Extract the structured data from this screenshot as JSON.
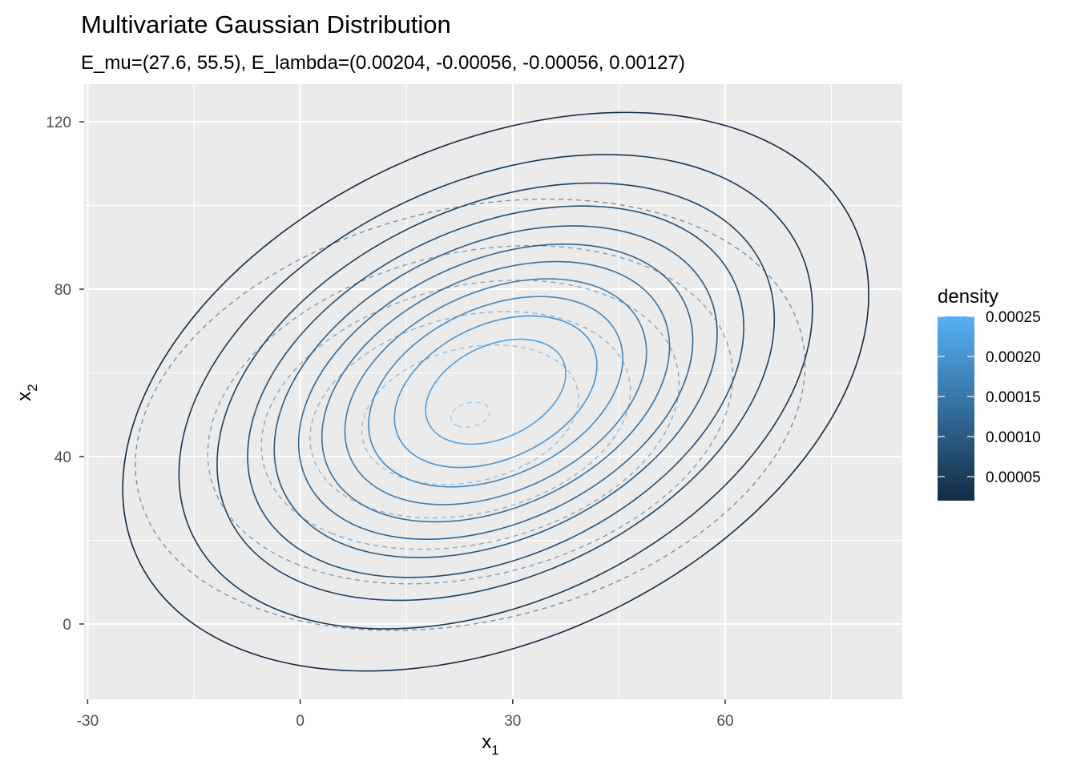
{
  "chart_data": {
    "type": "contour",
    "title": "Multivariate Gaussian Distribution",
    "subtitle": "E_mu=(27.6, 55.5), E_lambda=(0.00204, -0.00056, -0.00056, 0.00127)",
    "xlabel": "x",
    "xlabel_sub": "1",
    "ylabel": "x",
    "ylabel_sub": "2",
    "xlim": [
      -30.5,
      85
    ],
    "ylim": [
      -18,
      129
    ],
    "xticks": [
      -30,
      0,
      30,
      60
    ],
    "xtick_labels": [
      "-30",
      "0",
      "30",
      "60"
    ],
    "yticks": [
      0,
      40,
      80,
      120
    ],
    "ytick_labels": [
      "0",
      "40",
      "80",
      "120"
    ],
    "grid": true,
    "legend": {
      "title": "density",
      "position": "right",
      "range": [
        2e-05,
        0.00025
      ],
      "breaks": [
        5e-05,
        0.0001,
        0.00015,
        0.0002,
        0.00025
      ],
      "labels": [
        "0.00005",
        "0.00010",
        "0.00015",
        "0.00020",
        "0.00025"
      ],
      "color_low": "#132B43",
      "color_high": "#56B1F7"
    },
    "series": [
      {
        "line_style": "solid",
        "mean": [
          27.6,
          55.5
        ],
        "precision": [
          [
            0.00204,
            -0.00056
          ],
          [
            -0.00056,
            0.00127
          ]
        ],
        "levels": [
          2e-05,
          4e-05,
          6e-05,
          8e-05,
          0.0001,
          0.00012,
          0.00014,
          0.00016,
          0.00018,
          0.0002,
          0.00022
        ]
      },
      {
        "line_style": "dashed",
        "mean": [
          24,
          50
        ],
        "precision": [
          [
            0.0017,
            -0.00036
          ],
          [
            -0.00036,
            0.00143
          ]
        ],
        "levels": [
          4e-05,
          8e-05,
          0.00012,
          0.00016,
          0.0002,
          0.00024
        ]
      }
    ]
  }
}
